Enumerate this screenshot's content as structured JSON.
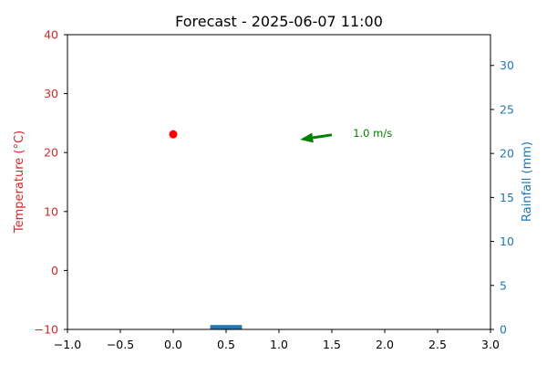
{
  "chart_data": {
    "type": "scatter",
    "title": "Forecast - 2025-06-07 11:00",
    "x": {
      "lim": [
        -1.0,
        3.0
      ],
      "ticks": [
        -1.0,
        -0.5,
        0.0,
        0.5,
        1.0,
        1.5,
        2.0,
        2.5,
        3.0
      ],
      "tick_labels": [
        "−1.0",
        "−0.5",
        "0.0",
        "0.5",
        "1.0",
        "1.5",
        "2.0",
        "2.5",
        "3.0"
      ]
    },
    "y_left": {
      "label": "Temperature (°C)",
      "lim": [
        -10,
        40
      ],
      "ticks": [
        -10,
        0,
        10,
        20,
        30,
        40
      ],
      "tick_labels": [
        "−10",
        "0",
        "10",
        "20",
        "30",
        "40"
      ],
      "color": "#d62728"
    },
    "y_right": {
      "label": "Rainfall (mm)",
      "lim": [
        0,
        33.5
      ],
      "ticks": [
        0,
        5,
        10,
        15,
        20,
        25,
        30
      ],
      "tick_labels": [
        "0",
        "5",
        "10",
        "15",
        "20",
        "25",
        "30"
      ],
      "color": "#1f77b4"
    },
    "temperature_point": {
      "x": 0.0,
      "y": 23.1,
      "color": "#ff0000"
    },
    "rainfall_bar": {
      "x": 0.5,
      "width": 0.3,
      "value": 0.5,
      "color": "#1f77b4"
    },
    "wind_arrow": {
      "tail": {
        "x": 1.5,
        "y": 23.0
      },
      "head": {
        "x": 1.2,
        "y": 22.2
      },
      "color": "#008000",
      "label": "1.0 m/s",
      "label_at": {
        "x": 1.7,
        "y": 23.3
      }
    },
    "grid": false,
    "legend": "none"
  }
}
